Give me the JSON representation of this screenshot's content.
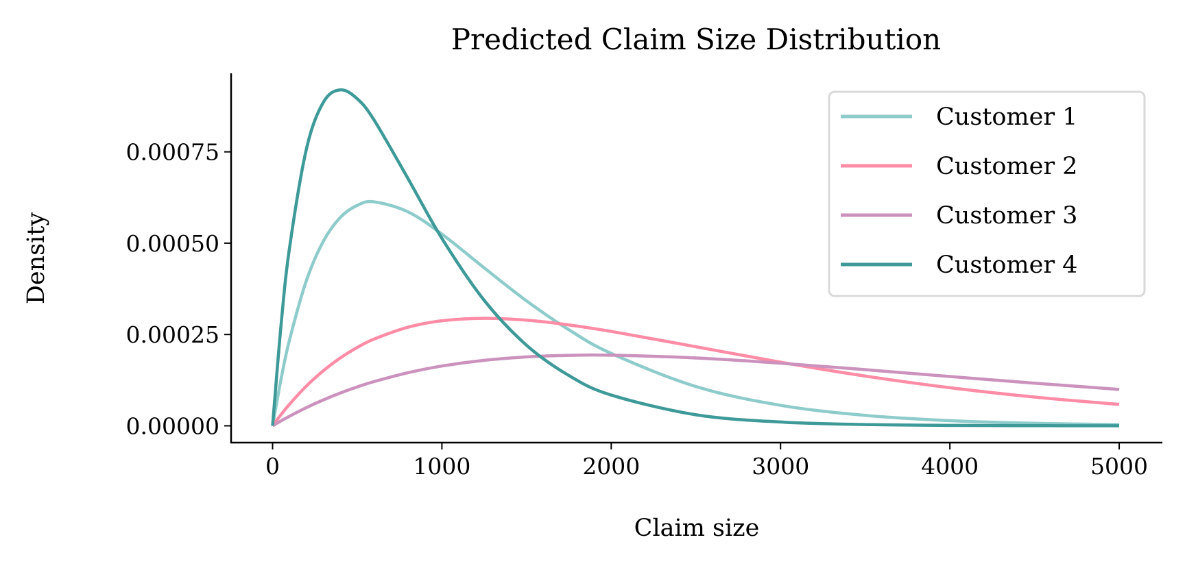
{
  "chart_data": {
    "type": "line",
    "title": "Predicted Claim Size Distribution",
    "xlabel": "Claim size",
    "ylabel": "Density",
    "xlim": [
      -245,
      5255
    ],
    "ylim": [
      -4.6e-05,
      0.000965
    ],
    "xticks": [
      0,
      1000,
      2000,
      3000,
      4000,
      5000
    ],
    "xtick_labels": [
      "0",
      "1000",
      "2000",
      "3000",
      "4000",
      "5000"
    ],
    "yticks": [
      0,
      0.00025,
      0.0005,
      0.00075
    ],
    "ytick_labels": [
      "0.00000",
      "0.00025",
      "0.00050",
      "0.00075"
    ],
    "grid": false,
    "legend_position": "top-right",
    "x": [
      0,
      50,
      100,
      200,
      300,
      400,
      500,
      600,
      800,
      1000,
      1250,
      1500,
      1750,
      2000,
      2500,
      3000,
      3500,
      4000,
      4500,
      5000
    ],
    "series": [
      {
        "name": "Customer 1",
        "color": "#8ecbcb",
        "values": [
          0,
          0.0001278,
          0.0002351,
          0.0003981,
          0.0005054,
          0.0005704,
          0.0006036,
          0.0006131,
          0.0005857,
          0.0005247,
          0.0004323,
          0.000342,
          0.000263,
          0.0001982,
          0.0001076,
          5.61e-05,
          2.85e-05,
          1.41e-05,
          6.9e-06,
          3.3e-06
        ]
      },
      {
        "name": "Customer 2",
        "color": "#ff8ca6",
        "values": [
          0,
          3.07e-05,
          5.91e-05,
          0.0001091,
          0.000151,
          0.0001859,
          0.0002145,
          0.0002376,
          0.00027,
          0.0002876,
          0.0002943,
          0.0002892,
          0.0002762,
          0.0002584,
          0.0002165,
          0.0001742,
          0.0001362,
          0.0001043,
          7.87e-05,
          5.86e-05
        ]
      },
      {
        "name": "Customer 3",
        "color": "#cc92be",
        "values": [
          0,
          1.35e-05,
          2.63e-05,
          4.99e-05,
          7.1e-05,
          8.98e-05,
          0.0001065,
          0.0001212,
          0.0001455,
          0.0001637,
          0.0001793,
          0.0001886,
          0.0001929,
          0.0001933,
          0.0001857,
          0.0001714,
          0.0001537,
          0.000135,
          0.0001167,
          9.97e-05
        ]
      },
      {
        "name": "Customer 4",
        "color": "#3d9a98",
        "values": [
          0,
          0.0002758,
          0.0004868,
          0.0007582,
          0.0008857,
          0.0009197,
          0.0008953,
          0.0008367,
          0.0006767,
          0.000513,
          0.0003433,
          0.0002205,
          0.0001377,
          8.42e-05,
          3.02e-05,
          1.04e-05,
          3.5e-06,
          1.1e-06,
          4e-07,
          1e-07
        ]
      }
    ]
  }
}
